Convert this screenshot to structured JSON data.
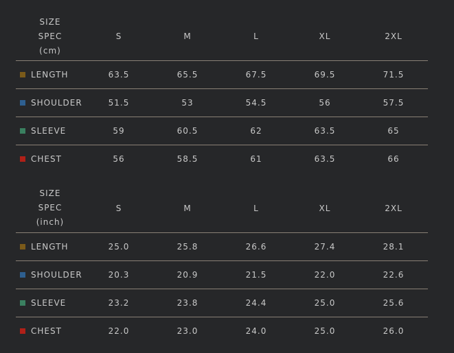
{
  "sizes": [
    "S",
    "M",
    "L",
    "XL",
    "2XL"
  ],
  "colors": {
    "LENGTH": "#7a5a1a",
    "SHOULDER": "#2e5f90",
    "SLEEVE": "#3a8060",
    "CHEST": "#b02018"
  },
  "tables": [
    {
      "spec_lines": [
        "SIZE",
        "SPEC",
        "(cm)"
      ],
      "rows": [
        {
          "label": "LENGTH",
          "values": [
            "63.5",
            "65.5",
            "67.5",
            "69.5",
            "71.5"
          ]
        },
        {
          "label": "SHOULDER",
          "values": [
            "51.5",
            "53",
            "54.5",
            "56",
            "57.5"
          ]
        },
        {
          "label": "SLEEVE",
          "values": [
            "59",
            "60.5",
            "62",
            "63.5",
            "65"
          ]
        },
        {
          "label": "CHEST",
          "values": [
            "56",
            "58.5",
            "61",
            "63.5",
            "66"
          ]
        }
      ]
    },
    {
      "spec_lines": [
        "SIZE",
        "SPEC",
        "(inch)"
      ],
      "rows": [
        {
          "label": "LENGTH",
          "values": [
            "25.0",
            "25.8",
            "26.6",
            "27.4",
            "28.1"
          ]
        },
        {
          "label": "SHOULDER",
          "values": [
            "20.3",
            "20.9",
            "21.5",
            "22.0",
            "22.6"
          ]
        },
        {
          "label": "SLEEVE",
          "values": [
            "23.2",
            "23.8",
            "24.4",
            "25.0",
            "25.6"
          ]
        },
        {
          "label": "CHEST",
          "values": [
            "22.0",
            "23.0",
            "24.0",
            "25.0",
            "26.0"
          ]
        }
      ]
    }
  ]
}
